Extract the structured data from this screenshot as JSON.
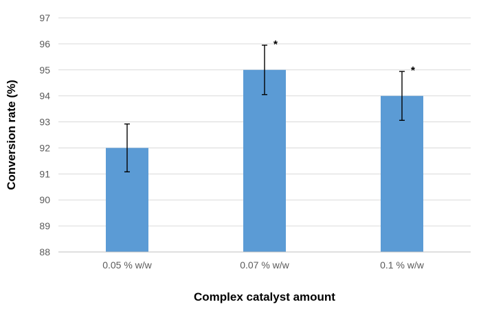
{
  "chart_data": {
    "type": "bar",
    "title": "",
    "xlabel": "Complex catalyst amount",
    "ylabel": "Conversion rate (%)",
    "categories": [
      "0.05 % w/w",
      "0.07 % w/w",
      "0.1 % w/w"
    ],
    "values": [
      92,
      95,
      94
    ],
    "error": [
      0.92,
      0.95,
      0.94
    ],
    "annotations": [
      "",
      "*",
      "*"
    ],
    "ylim": [
      88,
      97
    ],
    "yticks": [
      88,
      89,
      90,
      91,
      92,
      93,
      94,
      95,
      96,
      97
    ],
    "grid": true,
    "bar_color": "#5b9bd5",
    "legend": "none"
  }
}
